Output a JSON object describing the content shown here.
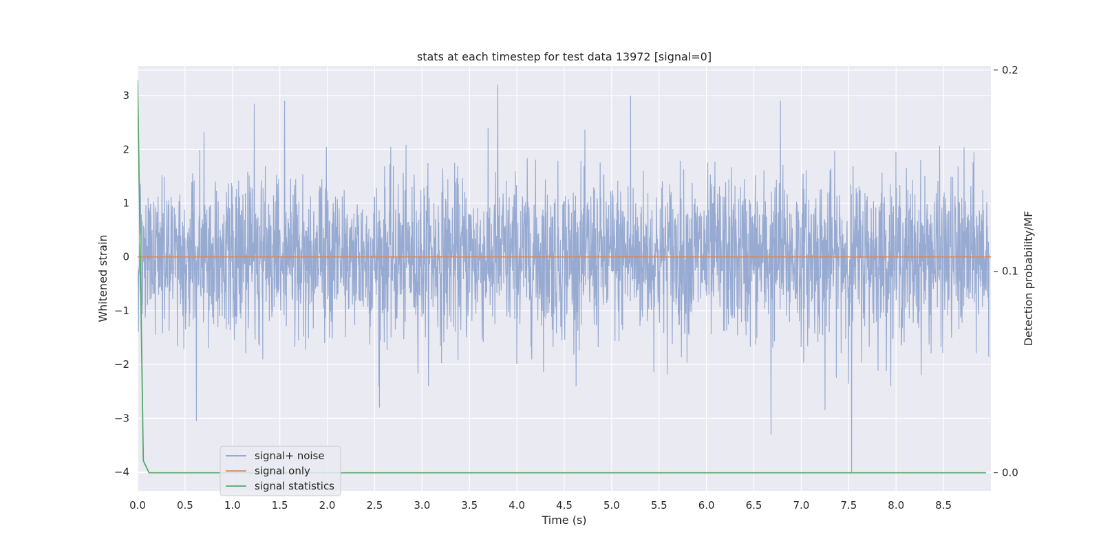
{
  "chart_data": {
    "type": "line",
    "title": "stats at each timestep for test data 13972 [signal=0]",
    "xlabel": "Time (s)",
    "ylabel": "Whitened strain",
    "y2label": "Detection probability/MF",
    "xlim": [
      0.0,
      9.0
    ],
    "ylim": [
      -4.35,
      3.55
    ],
    "y2lim": [
      -0.009,
      0.202
    ],
    "xticks": [
      0.0,
      0.5,
      1.0,
      1.5,
      2.0,
      2.5,
      3.0,
      3.5,
      4.0,
      4.5,
      5.0,
      5.5,
      6.0,
      6.5,
      7.0,
      7.5,
      8.0,
      8.5
    ],
    "xtick_labels": [
      "0.0",
      "0.5",
      "1.0",
      "1.5",
      "2.0",
      "2.5",
      "3.0",
      "3.5",
      "4.0",
      "4.5",
      "5.0",
      "5.5",
      "6.0",
      "6.5",
      "7.0",
      "7.5",
      "8.0",
      "8.5"
    ],
    "yticks": [
      3,
      2,
      1,
      0,
      -1,
      -2,
      -3,
      -4
    ],
    "ytick_labels": [
      "3",
      "2",
      "1",
      "0",
      "−1",
      "−2",
      "−3",
      "−4"
    ],
    "y2ticks": [
      0.2,
      0.1,
      0.0
    ],
    "y2tick_labels": [
      "0.2",
      "0.1",
      "0.0"
    ],
    "grid": true,
    "legend_position": "lower-left",
    "colors": {
      "background": "#eaeaf2",
      "grid": "#ffffff",
      "noise": "#8ea3cd",
      "signal": "#dd8452",
      "statistics": "#55a868"
    },
    "series": [
      {
        "name": "signal+ noise",
        "axis": "left",
        "note_style": "dense noisy trace",
        "amplitude_typical": 1.5,
        "peaks": [
          {
            "x": 3.8,
            "y": 3.2
          },
          {
            "x": 5.2,
            "y": 3.0
          },
          {
            "x": 1.55,
            "y": 2.9
          },
          {
            "x": 1.23,
            "y": 2.85
          },
          {
            "x": 6.78,
            "y": 2.9
          },
          {
            "x": 0.62,
            "y": -3.05
          },
          {
            "x": 6.68,
            "y": -3.3
          },
          {
            "x": 7.53,
            "y": -4.0
          },
          {
            "x": 2.55,
            "y": -2.8
          },
          {
            "x": 7.25,
            "y": -2.85
          }
        ]
      },
      {
        "name": "signal only",
        "axis": "left",
        "x": [
          0.0,
          9.0
        ],
        "y": [
          0.0,
          0.0
        ]
      },
      {
        "name": "signal statistics",
        "axis": "right",
        "x": [
          0.0,
          0.06,
          0.12,
          0.5,
          1.0,
          2.0,
          3.0,
          4.0,
          5.0,
          6.0,
          7.0,
          8.0,
          8.95
        ],
        "y": [
          0.195,
          0.006,
          0.0,
          0.0,
          0.0,
          0.0,
          0.0,
          0.0,
          0.0,
          0.0,
          0.0,
          0.0,
          0.0
        ]
      }
    ],
    "legend": [
      "signal+ noise",
      "signal only",
      "signal statistics"
    ]
  }
}
